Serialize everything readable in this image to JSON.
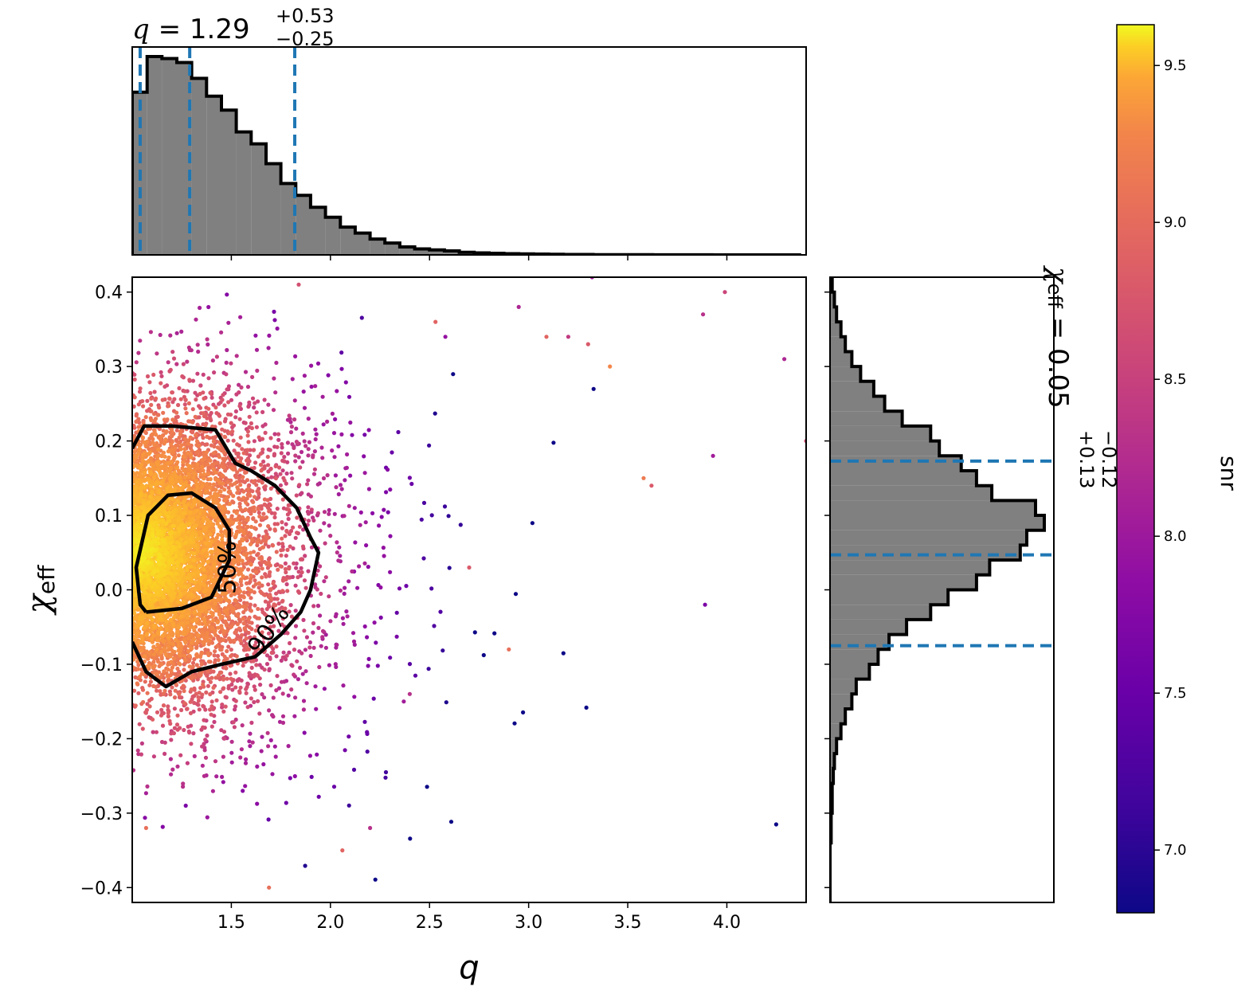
{
  "chart_data": [
    {
      "panel": "main-scatter",
      "type": "scatter",
      "xlabel": "q",
      "ylabel": "χeff",
      "xlim": [
        1.0,
        4.4
      ],
      "ylim": [
        -0.42,
        0.42
      ],
      "x_ticks": [
        1.5,
        2.0,
        2.5,
        3.0,
        3.5,
        4.0
      ],
      "x_tick_labels": [
        "1.5",
        "2.0",
        "2.5",
        "3.0",
        "3.5",
        "4.0"
      ],
      "y_ticks": [
        -0.4,
        -0.3,
        -0.2,
        -0.1,
        0.0,
        0.1,
        0.2,
        0.3,
        0.4
      ],
      "y_tick_labels": [
        "−0.4",
        "−0.3",
        "−0.2",
        "−0.1",
        "0.0",
        "0.1",
        "0.2",
        "0.3",
        "0.4"
      ],
      "color_by": "snr",
      "colormap": "plasma",
      "points_summary": {
        "approx_count": 7000,
        "q_median": 1.29,
        "chi_eff_median": 0.05
      },
      "outlier_points": [
        {
          "x": 1.84,
          "y": 0.41,
          "snr": 8.3
        },
        {
          "x": 3.32,
          "y": 0.42,
          "snr": 7.8
        },
        {
          "x": 3.99,
          "y": 0.4,
          "snr": 8.2
        },
        {
          "x": 3.88,
          "y": 0.37,
          "snr": 8.0
        },
        {
          "x": 2.95,
          "y": 0.38,
          "snr": 7.9
        },
        {
          "x": 4.29,
          "y": 0.31,
          "snr": 7.9
        },
        {
          "x": 4.4,
          "y": 0.2,
          "snr": 8.3
        },
        {
          "x": 3.93,
          "y": 0.18,
          "snr": 7.8
        },
        {
          "x": 3.89,
          "y": -0.02,
          "snr": 7.5
        },
        {
          "x": 3.62,
          "y": 0.14,
          "snr": 8.4
        },
        {
          "x": 3.58,
          "y": 0.15,
          "snr": 8.7
        },
        {
          "x": 3.3,
          "y": 0.33,
          "snr": 8.4
        },
        {
          "x": 3.41,
          "y": 0.3,
          "snr": 8.8
        },
        {
          "x": 3.2,
          "y": 0.34,
          "snr": 8.1
        },
        {
          "x": 3.09,
          "y": 0.34,
          "snr": 8.5
        },
        {
          "x": 2.53,
          "y": 0.36,
          "snr": 8.5
        },
        {
          "x": 2.58,
          "y": 0.34,
          "snr": 7.7
        },
        {
          "x": 1.69,
          "y": -0.4,
          "snr": 8.6
        },
        {
          "x": 1.07,
          "y": -0.32,
          "snr": 8.6
        },
        {
          "x": 1.27,
          "y": -0.29,
          "snr": 7.5
        },
        {
          "x": 2.06,
          "y": -0.35,
          "snr": 8.5
        },
        {
          "x": 2.2,
          "y": -0.32,
          "snr": 8.0
        },
        {
          "x": 2.4,
          "y": -0.14,
          "snr": 8.0
        },
        {
          "x": 2.37,
          "y": -0.15,
          "snr": 7.8
        },
        {
          "x": 2.7,
          "y": 0.03,
          "snr": 8.4
        },
        {
          "x": 2.9,
          "y": -0.08,
          "snr": 8.6
        }
      ],
      "contours": [
        {
          "label": "50%",
          "points": [
            [
              1.07,
              -0.03
            ],
            [
              1.25,
              -0.025
            ],
            [
              1.4,
              -0.01
            ],
            [
              1.49,
              0.04
            ],
            [
              1.49,
              0.08
            ],
            [
              1.42,
              0.11
            ],
            [
              1.3,
              0.13
            ],
            [
              1.18,
              0.127
            ],
            [
              1.08,
              0.1
            ],
            [
              1.02,
              0.03
            ],
            [
              1.04,
              -0.02
            ],
            [
              1.07,
              -0.03
            ]
          ]
        },
        {
          "label": "90%",
          "points": [
            [
              1.0,
              0.19
            ],
            [
              1.06,
              0.22
            ],
            [
              1.2,
              0.22
            ],
            [
              1.42,
              0.215
            ],
            [
              1.52,
              0.17
            ],
            [
              1.6,
              0.16
            ],
            [
              1.72,
              0.14
            ],
            [
              1.83,
              0.11
            ],
            [
              1.9,
              0.07
            ],
            [
              1.94,
              0.05
            ],
            [
              1.9,
              0.0
            ],
            [
              1.85,
              -0.03
            ],
            [
              1.75,
              -0.06
            ],
            [
              1.62,
              -0.09
            ],
            [
              1.45,
              -0.1
            ],
            [
              1.3,
              -0.11
            ],
            [
              1.17,
              -0.13
            ],
            [
              1.07,
              -0.11
            ],
            [
              1.0,
              -0.07
            ]
          ]
        }
      ]
    },
    {
      "panel": "top-marginal",
      "type": "bar",
      "title": "q = 1.29+0.53−0.25",
      "title_parts": {
        "var": "q",
        "eq": " = ",
        "median": "1.29",
        "plus": "+0.53",
        "minus": "−0.25"
      },
      "x_edges_start": 1.0,
      "bin_width": 0.075,
      "counts": [
        0.82,
        1.0,
        0.99,
        0.97,
        0.89,
        0.8,
        0.73,
        0.62,
        0.56,
        0.46,
        0.36,
        0.3,
        0.24,
        0.19,
        0.14,
        0.11,
        0.08,
        0.06,
        0.04,
        0.03,
        0.025,
        0.02,
        0.013,
        0.01,
        0.008,
        0.006,
        0.005,
        0.004,
        0.003,
        0.002,
        0.002,
        0.001,
        0.001,
        0.001,
        0.0008,
        0.0006,
        0.0005,
        0.0004,
        0.0003,
        0.0002,
        0.0002,
        0.0001,
        0.0001,
        0.0001,
        0.0001
      ],
      "quantile_lines": [
        1.04,
        1.29,
        1.82
      ],
      "fill_color": "#808080",
      "line_color": "#1f77b4"
    },
    {
      "panel": "right-marginal",
      "type": "bar",
      "orientation": "horizontal",
      "title": "χeff = 0.05+0.13−0.12",
      "title_parts": {
        "var": "χ",
        "sub": "eff",
        "eq": " = ",
        "median": "0.05",
        "plus": "+0.13",
        "minus": "−0.12"
      },
      "y_edges_start": -0.42,
      "bin_width": 0.02,
      "counts": [
        0.0,
        0.0,
        0.0,
        0.0,
        0.005,
        0.005,
        0.01,
        0.01,
        0.015,
        0.02,
        0.03,
        0.05,
        0.07,
        0.1,
        0.12,
        0.18,
        0.22,
        0.27,
        0.35,
        0.46,
        0.54,
        0.67,
        0.73,
        0.87,
        0.9,
        0.98,
        0.94,
        0.74,
        0.67,
        0.6,
        0.5,
        0.46,
        0.33,
        0.25,
        0.2,
        0.14,
        0.1,
        0.07,
        0.05,
        0.03,
        0.02,
        0.01,
        0.005,
        0.0
      ],
      "quantile_lines": [
        -0.075,
        0.047,
        0.173
      ],
      "fill_color": "#808080",
      "line_color": "#1f77b4"
    },
    {
      "panel": "colorbar",
      "type": "heatmap",
      "label": "snr",
      "range": [
        6.8,
        9.63
      ],
      "ticks": [
        7.0,
        7.5,
        8.0,
        8.5,
        9.0,
        9.5
      ],
      "tick_labels": [
        "7.0",
        "7.5",
        "8.0",
        "8.5",
        "9.0",
        "9.5"
      ],
      "colormap": "plasma"
    }
  ]
}
